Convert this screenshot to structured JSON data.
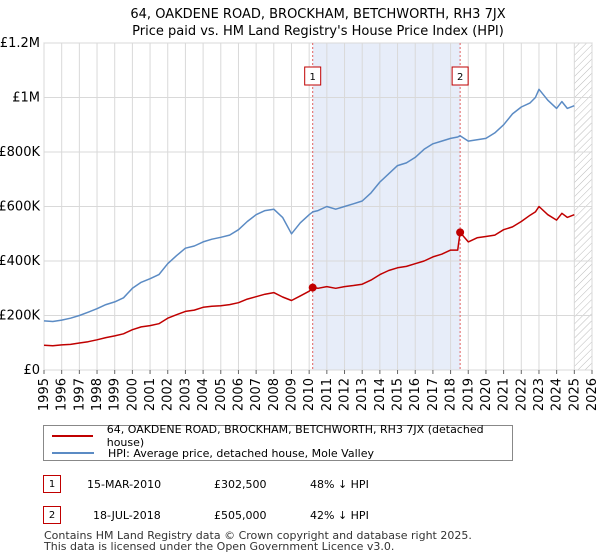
{
  "chart_data": {
    "type": "line",
    "title": "64, OAKDENE ROAD, BROCKHAM, BETCHWORTH, RH3 7JX",
    "subtitle": "Price paid vs. HM Land Registry's House Price Index (HPI)",
    "xlim": [
      1995,
      2026
    ],
    "ylim": [
      0,
      1200000
    ],
    "x_ticks": [
      "1995",
      "1996",
      "1997",
      "1998",
      "1999",
      "2000",
      "2001",
      "2002",
      "2003",
      "2004",
      "2005",
      "2006",
      "2007",
      "2008",
      "2009",
      "2010",
      "2011",
      "2012",
      "2013",
      "2014",
      "2015",
      "2016",
      "2017",
      "2018",
      "2019",
      "2020",
      "2021",
      "2022",
      "2023",
      "2024",
      "2025",
      "2026"
    ],
    "y_ticks": [
      {
        "value": 0,
        "label": "£0"
      },
      {
        "value": 200000,
        "label": "£200K"
      },
      {
        "value": 400000,
        "label": "£400K"
      },
      {
        "value": 600000,
        "label": "£600K"
      },
      {
        "value": 800000,
        "label": "£800K"
      },
      {
        "value": 1000000,
        "label": "£1M"
      },
      {
        "value": 1200000,
        "label": "£1.2M"
      }
    ],
    "grid": true,
    "highlight_span": [
      2010.2,
      2018.54
    ],
    "future_hatch_from": 2025.0,
    "series": [
      {
        "name": "64, OAKDENE ROAD, BROCKHAM, BETCHWORTH, RH3 7JX (detached house)",
        "color": "#c00000",
        "x": [
          1995.0,
          1995.5,
          1996.0,
          1996.5,
          1997.0,
          1997.5,
          1998.0,
          1998.5,
          1999.0,
          1999.5,
          2000.0,
          2000.5,
          2001.0,
          2001.5,
          2002.0,
          2002.5,
          2003.0,
          2003.5,
          2004.0,
          2004.5,
          2005.0,
          2005.5,
          2006.0,
          2006.5,
          2007.0,
          2007.5,
          2008.0,
          2008.5,
          2009.0,
          2009.5,
          2010.0,
          2010.2,
          2010.5,
          2011.0,
          2011.5,
          2012.0,
          2012.5,
          2013.0,
          2013.5,
          2014.0,
          2014.5,
          2015.0,
          2015.5,
          2016.0,
          2016.5,
          2017.0,
          2017.5,
          2018.0,
          2018.4,
          2018.54,
          2019.0,
          2019.5,
          2020.0,
          2020.5,
          2021.0,
          2021.5,
          2022.0,
          2022.5,
          2022.8,
          2023.0,
          2023.5,
          2024.0,
          2024.3,
          2024.6,
          2025.0
        ],
        "values": [
          91000,
          89000,
          92000,
          94000,
          99000,
          104000,
          111000,
          119000,
          125000,
          133000,
          148000,
          158000,
          163000,
          170000,
          190000,
          203000,
          215000,
          220000,
          230000,
          234000,
          236000,
          240000,
          247000,
          260000,
          269000,
          278000,
          284000,
          268000,
          255000,
          272000,
          289000,
          302500,
          300000,
          306000,
          300000,
          306000,
          310000,
          315000,
          330000,
          350000,
          365000,
          375000,
          380000,
          390000,
          400000,
          415000,
          425000,
          440000,
          440000,
          505000,
          470000,
          485000,
          490000,
          495000,
          515000,
          525000,
          545000,
          568000,
          580000,
          600000,
          570000,
          550000,
          575000,
          560000,
          570000
        ]
      },
      {
        "name": "HPI: Average price, detached house, Mole Valley",
        "color": "#5b8bc4",
        "x": [
          1995.0,
          1995.5,
          1996.0,
          1996.5,
          1997.0,
          1997.5,
          1998.0,
          1998.5,
          1999.0,
          1999.5,
          2000.0,
          2000.5,
          2001.0,
          2001.5,
          2002.0,
          2002.5,
          2003.0,
          2003.5,
          2004.0,
          2004.5,
          2005.0,
          2005.5,
          2006.0,
          2006.5,
          2007.0,
          2007.5,
          2008.0,
          2008.5,
          2009.0,
          2009.5,
          2010.0,
          2010.2,
          2010.5,
          2011.0,
          2011.5,
          2012.0,
          2012.5,
          2013.0,
          2013.5,
          2014.0,
          2014.5,
          2015.0,
          2015.5,
          2016.0,
          2016.5,
          2017.0,
          2017.5,
          2018.0,
          2018.4,
          2018.54,
          2019.0,
          2019.5,
          2020.0,
          2020.5,
          2021.0,
          2021.5,
          2022.0,
          2022.5,
          2022.8,
          2023.0,
          2023.5,
          2024.0,
          2024.3,
          2024.6,
          2025.0
        ],
        "values": [
          180000,
          178000,
          183000,
          190000,
          200000,
          212000,
          225000,
          240000,
          250000,
          265000,
          300000,
          322000,
          335000,
          350000,
          390000,
          420000,
          447000,
          455000,
          470000,
          480000,
          487000,
          495000,
          515000,
          545000,
          570000,
          585000,
          590000,
          560000,
          500000,
          540000,
          570000,
          580000,
          585000,
          600000,
          590000,
          600000,
          610000,
          620000,
          650000,
          690000,
          720000,
          750000,
          760000,
          780000,
          810000,
          830000,
          840000,
          850000,
          855000,
          860000,
          840000,
          845000,
          850000,
          870000,
          900000,
          940000,
          965000,
          980000,
          1000000,
          1030000,
          990000,
          960000,
          985000,
          960000,
          970000
        ]
      }
    ],
    "sales": [
      {
        "label": "1",
        "x": 2010.2,
        "value": 302500
      },
      {
        "label": "2",
        "x": 2018.54,
        "value": 505000
      }
    ]
  },
  "legend": {
    "property": "64, OAKDENE ROAD, BROCKHAM, BETCHWORTH, RH3 7JX (detached house)",
    "hpi": "HPI: Average price, detached house, Mole Valley"
  },
  "sales_table": [
    {
      "num": "1",
      "date": "15-MAR-2010",
      "price": "£302,500",
      "hpi": "48% ↓ HPI"
    },
    {
      "num": "2",
      "date": "18-JUL-2018",
      "price": "£505,000",
      "hpi": "42% ↓ HPI"
    }
  ],
  "footer": {
    "line1": "Contains HM Land Registry data © Crown copyright and database right 2025.",
    "line2": "This data is licensed under the Open Government Licence v3.0."
  }
}
